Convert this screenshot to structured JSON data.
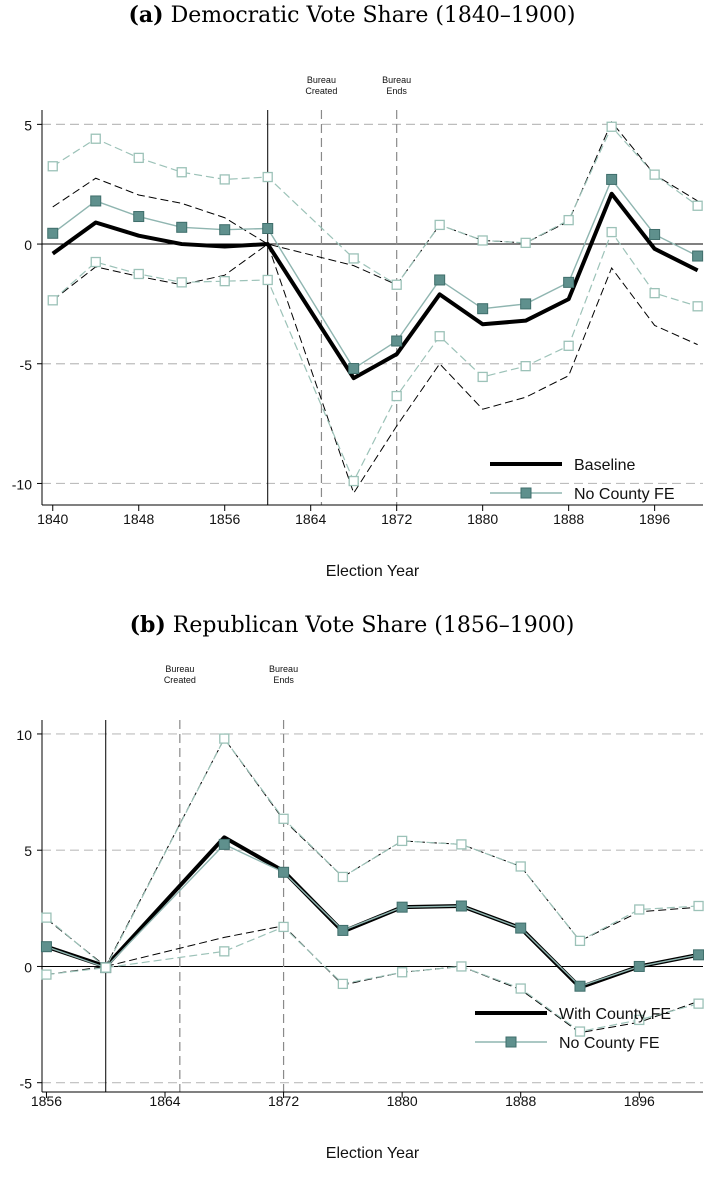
{
  "chart_data": [
    {
      "type": "line",
      "panel_label": "(a)",
      "title": "Democratic Vote Share (1840–1900)",
      "xlabel": "Election Year",
      "ylabel": "",
      "x_ticks": [
        "1840",
        "1848",
        "1856",
        "1864",
        "1872",
        "1880",
        "1888",
        "1896"
      ],
      "y_ticks": [
        "5",
        "0",
        "-5",
        "-10"
      ],
      "xlim": [
        1839,
        1900.5
      ],
      "ylim": [
        -10.9,
        5.6
      ],
      "grid_y": [
        5,
        -5,
        -10
      ],
      "reference_year": 1860,
      "bureau_created_year": 1865,
      "bureau_ends_year": 1872,
      "annotations": [
        {
          "year": 1865,
          "line1": "Bureau",
          "line2": "Created"
        },
        {
          "year": 1872,
          "line1": "Bureau",
          "line2": "Ends"
        }
      ],
      "x": [
        1840,
        1844,
        1848,
        1852,
        1856,
        1860,
        1868,
        1872,
        1876,
        1880,
        1884,
        1888,
        1892,
        1896,
        1900
      ],
      "series": [
        {
          "name": "Baseline",
          "style": "thick-black",
          "values": [
            -0.4,
            0.9,
            0.35,
            0.0,
            -0.1,
            0.0,
            -5.6,
            -4.6,
            -2.1,
            -3.35,
            -3.2,
            -2.3,
            2.1,
            -0.2,
            -1.1
          ]
        },
        {
          "name": "Baseline CI upper",
          "style": "black-dashed",
          "values": [
            1.55,
            2.75,
            2.05,
            1.7,
            1.1,
            0.0,
            -0.9,
            -1.7,
            0.8,
            0.15,
            0.05,
            0.95,
            5.1,
            2.9,
            1.8
          ]
        },
        {
          "name": "Baseline CI lower",
          "style": "black-dashed",
          "values": [
            -2.35,
            -0.95,
            -1.35,
            -1.7,
            -1.3,
            0.0,
            -10.4,
            -7.6,
            -5.0,
            -6.9,
            -6.4,
            -5.5,
            -1.0,
            -3.4,
            -4.2
          ]
        },
        {
          "name": "No County FE",
          "style": "teal-filled-squares",
          "values": [
            0.45,
            1.8,
            1.15,
            0.7,
            0.6,
            0.65,
            -5.2,
            -4.05,
            -1.5,
            -2.7,
            -2.5,
            -1.6,
            2.7,
            0.4,
            -0.5
          ]
        },
        {
          "name": "No County FE CI upper",
          "style": "teal-dashed-hollow",
          "values": [
            3.25,
            4.4,
            3.6,
            3.0,
            2.7,
            2.8,
            -0.6,
            -1.7,
            0.8,
            0.15,
            0.05,
            1.0,
            4.9,
            2.9,
            1.6
          ]
        },
        {
          "name": "No County FE CI lower",
          "style": "teal-dashed-hollow",
          "values": [
            -2.35,
            -0.75,
            -1.25,
            -1.6,
            -1.55,
            -1.5,
            -9.9,
            -6.35,
            -3.85,
            -5.55,
            -5.1,
            -4.25,
            0.5,
            -2.05,
            -2.6
          ]
        }
      ],
      "legend": {
        "position": "bottom-right",
        "entries": [
          "Baseline",
          "No County FE"
        ]
      }
    },
    {
      "type": "line",
      "panel_label": "(b)",
      "title": "Republican Vote Share (1856–1900)",
      "xlabel": "Election Year",
      "ylabel": "",
      "x_ticks": [
        "1856",
        "1864",
        "1872",
        "1880",
        "1888",
        "1896"
      ],
      "y_ticks": [
        "10",
        "5",
        "0",
        "-5"
      ],
      "xlim": [
        1855.7,
        1900.3
      ],
      "ylim": [
        -5.4,
        10.6
      ],
      "grid_y": [
        10,
        5,
        -5
      ],
      "reference_year": 1860,
      "bureau_created_year": 1865,
      "bureau_ends_year": 1872,
      "annotations": [
        {
          "year": 1865,
          "line1": "Bureau",
          "line2": "Created"
        },
        {
          "year": 1872,
          "line1": "Bureau",
          "line2": "Ends"
        }
      ],
      "x": [
        1856,
        1860,
        1868,
        1872,
        1876,
        1880,
        1884,
        1888,
        1892,
        1896,
        1900
      ],
      "series": [
        {
          "name": "With County FE",
          "style": "thick-black",
          "values": [
            0.85,
            0.0,
            5.55,
            4.1,
            1.5,
            2.55,
            2.6,
            1.65,
            -0.9,
            0.0,
            0.5
          ]
        },
        {
          "name": "With County FE CI upper",
          "style": "black-dashed",
          "values": [
            2.05,
            0.0,
            9.8,
            6.3,
            3.85,
            5.4,
            5.25,
            4.3,
            1.1,
            2.35,
            2.55
          ]
        },
        {
          "name": "With County FE CI lower",
          "style": "black-dashed",
          "values": [
            -0.35,
            0.0,
            1.25,
            1.75,
            -0.8,
            -0.25,
            0.0,
            -1.0,
            -2.85,
            -2.4,
            -1.5
          ]
        },
        {
          "name": "No County FE",
          "style": "teal-filled-squares",
          "values": [
            0.85,
            -0.05,
            5.25,
            4.05,
            1.55,
            2.55,
            2.6,
            1.65,
            -0.85,
            0.0,
            0.5
          ]
        },
        {
          "name": "No County FE CI upper",
          "style": "teal-dashed-hollow",
          "values": [
            2.1,
            -0.05,
            9.8,
            6.35,
            3.85,
            5.4,
            5.25,
            4.3,
            1.1,
            2.45,
            2.6
          ]
        },
        {
          "name": "No County FE CI lower",
          "style": "teal-dashed-hollow",
          "values": [
            -0.35,
            -0.05,
            0.65,
            1.7,
            -0.75,
            -0.25,
            0.0,
            -0.95,
            -2.8,
            -2.3,
            -1.6
          ]
        }
      ],
      "legend": {
        "position": "bottom-right",
        "entries": [
          "With County FE",
          "No County FE"
        ]
      }
    }
  ],
  "colors": {
    "black": "#000000",
    "teal_line": "#8fb5b0",
    "teal_fill": "#5f908d",
    "teal_stroke": "#3f6e6b",
    "teal_ci": "#9cc2b8",
    "grid": "#bdbdbd",
    "bureau_line": "#8a8a8a"
  }
}
